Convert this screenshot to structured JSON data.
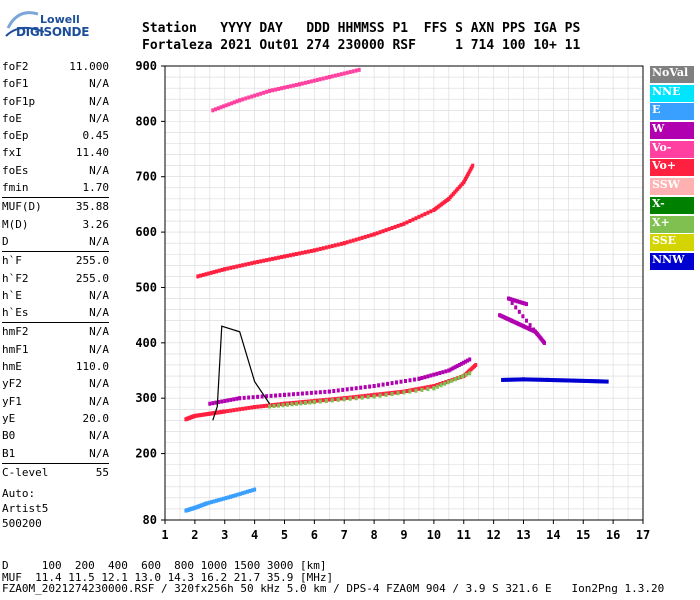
{
  "logo": {
    "line1": "Lowell",
    "line2": "DIGISONDE"
  },
  "header": {
    "row1": "Station   YYYY DAY   DDD HHMMSS P1  FFS S AXN PPS IGA PS",
    "row2": "Fortaleza 2021 Out01 274 230000 RSF     1 714 100 10+ 11"
  },
  "params": {
    "group1": [
      {
        "label": "foF2",
        "value": "11.000"
      },
      {
        "label": "foF1",
        "value": "N/A"
      },
      {
        "label": "foF1p",
        "value": "N/A"
      },
      {
        "label": "foE",
        "value": "N/A"
      },
      {
        "label": "foEp",
        "value": "0.45"
      },
      {
        "label": "fxI",
        "value": "11.40"
      },
      {
        "label": "foEs",
        "value": "N/A"
      },
      {
        "label": "fmin",
        "value": "1.70"
      }
    ],
    "group2": [
      {
        "label": "MUF(D)",
        "value": "35.88"
      },
      {
        "label": "M(D)",
        "value": "3.26"
      },
      {
        "label": "D",
        "value": "N/A"
      }
    ],
    "group3": [
      {
        "label": "h`F",
        "value": "255.0"
      },
      {
        "label": "h`F2",
        "value": "255.0"
      },
      {
        "label": "h`E",
        "value": "N/A"
      },
      {
        "label": "h`Es",
        "value": "N/A"
      }
    ],
    "group4": [
      {
        "label": "hmF2",
        "value": "N/A"
      },
      {
        "label": "hmF1",
        "value": "N/A"
      },
      {
        "label": "hmE",
        "value": "110.0"
      },
      {
        "label": "yF2",
        "value": "N/A"
      },
      {
        "label": "yF1",
        "value": "N/A"
      },
      {
        "label": "yE",
        "value": "20.0"
      },
      {
        "label": "B0",
        "value": "N/A"
      },
      {
        "label": "B1",
        "value": "N/A"
      }
    ],
    "group5": [
      {
        "label": "C-level",
        "value": "55"
      }
    ]
  },
  "auto": {
    "line1": "Auto:",
    "line2": "Artist5",
    "line3": "500200"
  },
  "legend": [
    {
      "label": "NoVal",
      "color": "#808080"
    },
    {
      "label": "NNE",
      "color": "#00e5ff"
    },
    {
      "label": "E",
      "color": "#3aa0ff"
    },
    {
      "label": "W",
      "color": "#b000b0"
    },
    {
      "label": "Vo-",
      "color": "#ff40a0"
    },
    {
      "label": "Vo+",
      "color": "#ff1f3f"
    },
    {
      "label": "SSW",
      "color": "#ffb0b0"
    },
    {
      "label": "X-",
      "color": "#008000"
    },
    {
      "label": "X+",
      "color": "#7fc050"
    },
    {
      "label": "SSE",
      "color": "#d4d400"
    },
    {
      "label": "NNW",
      "color": "#0000d0"
    }
  ],
  "footer": {
    "line1": "D     100  200  400  600  800 1000 1500 3000 [km]",
    "line2": "MUF  11.4 11.5 12.1 13.0 14.3 16.2 21.7 35.9 [MHz]",
    "line3": "FZA0M_2021274230000.RSF / 320fx256h 50 kHz 5.0 km / DPS-4 FZA0M 904 / 3.9 S 321.6 E   Ion2Png 1.3.20"
  },
  "chart_data": {
    "type": "scatter",
    "xlim": [
      1,
      17
    ],
    "ylim": [
      80,
      900
    ],
    "x_ticks": [
      1,
      2,
      3,
      4,
      5,
      6,
      7,
      8,
      9,
      10,
      11,
      12,
      13,
      14,
      15,
      16,
      17
    ],
    "y_ticks": [
      80,
      200,
      300,
      400,
      500,
      600,
      700,
      800,
      900
    ],
    "grid": true,
    "legend_position": "right",
    "traces": [
      {
        "name": "O-trace lower F2",
        "color": "#ff1f3f",
        "points": [
          [
            1.7,
            262
          ],
          [
            2.0,
            268
          ],
          [
            2.5,
            272
          ],
          [
            3.0,
            276
          ],
          [
            4.0,
            284
          ],
          [
            5.0,
            290
          ],
          [
            6.0,
            295
          ],
          [
            7.0,
            300
          ],
          [
            8.0,
            306
          ],
          [
            9.0,
            312
          ],
          [
            10.0,
            322
          ],
          [
            11.0,
            340
          ],
          [
            11.4,
            360
          ]
        ]
      },
      {
        "name": "X-trace lower F2",
        "color": "#7fc050",
        "points": [
          [
            4.5,
            285
          ],
          [
            6,
            293
          ],
          [
            8,
            303
          ],
          [
            10,
            318
          ],
          [
            11.2,
            345
          ]
        ]
      },
      {
        "name": "upper oblique W",
        "color": "#b000b0",
        "points": [
          [
            2.5,
            290
          ],
          [
            3.5,
            300
          ],
          [
            5,
            306
          ],
          [
            6.5,
            312
          ],
          [
            8,
            322
          ],
          [
            9.5,
            335
          ],
          [
            10.5,
            350
          ],
          [
            11.2,
            370
          ]
        ]
      },
      {
        "name": "second hop",
        "color": "#ff1f3f",
        "points": [
          [
            2.1,
            520
          ],
          [
            3,
            533
          ],
          [
            4,
            545
          ],
          [
            5,
            556
          ],
          [
            6,
            567
          ],
          [
            7,
            580
          ],
          [
            8,
            596
          ],
          [
            9,
            615
          ],
          [
            10,
            640
          ],
          [
            10.5,
            660
          ],
          [
            11,
            690
          ],
          [
            11.3,
            720
          ]
        ]
      },
      {
        "name": "third hop",
        "color": "#ff40a0",
        "points": [
          [
            2.6,
            820
          ],
          [
            3.5,
            838
          ],
          [
            4.5,
            855
          ],
          [
            5.5,
            867
          ],
          [
            6.5,
            880
          ],
          [
            7.5,
            893
          ]
        ]
      },
      {
        "name": "NNW band",
        "color": "#0000d0",
        "points": [
          [
            12.3,
            333
          ],
          [
            13,
            334
          ],
          [
            13.8,
            333
          ],
          [
            14.5,
            332
          ],
          [
            15.2,
            331
          ],
          [
            15.8,
            330
          ]
        ]
      },
      {
        "name": "spread cluster",
        "color": "#b000b0",
        "points": [
          [
            12.2,
            450
          ],
          [
            12.6,
            440
          ],
          [
            13,
            430
          ],
          [
            13.4,
            420
          ],
          [
            13.7,
            400
          ],
          [
            12.5,
            480
          ],
          [
            13.1,
            470
          ]
        ]
      },
      {
        "name": "Es / E layer",
        "color": "#3aa0ff",
        "points": [
          [
            1.7,
            97
          ],
          [
            2.0,
            102
          ],
          [
            2.4,
            110
          ],
          [
            3.2,
            122
          ],
          [
            4,
            135
          ]
        ]
      }
    ],
    "profile_line": [
      [
        2.6,
        260
      ],
      [
        2.75,
        285
      ],
      [
        2.9,
        430
      ],
      [
        3.5,
        420
      ],
      [
        4.0,
        330
      ],
      [
        4.5,
        290
      ]
    ]
  }
}
